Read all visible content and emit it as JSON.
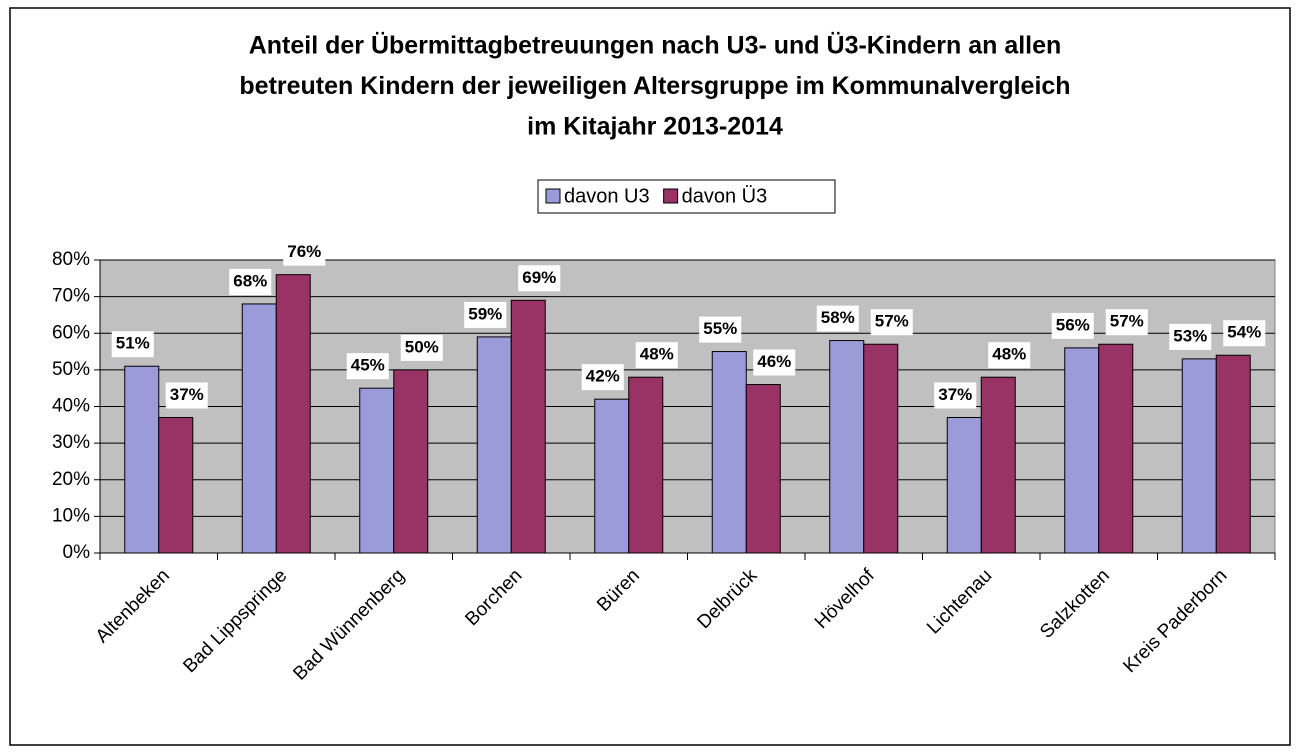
{
  "chart_data": {
    "type": "bar",
    "title": [
      "Anteil der Übermittagbetreuungen nach U3- und Ü3-Kindern an allen",
      "betreuten Kindern der jeweiligen Altersgruppe im Kommunalvergleich",
      "im Kitajahr 2013-2014"
    ],
    "categories": [
      "Altenbeken",
      "Bad Lippspringe",
      "Bad Wünnenberg",
      "Borchen",
      "Büren",
      "Delbrück",
      "Hövelhof",
      "Lichtenau",
      "Salzkotten",
      "Kreis Paderborn"
    ],
    "series": [
      {
        "name": "davon U3",
        "color": "#9c9bda",
        "values": [
          51,
          68,
          45,
          59,
          42,
          55,
          58,
          37,
          56,
          53
        ],
        "value_labels": [
          "51%",
          "68%",
          "45%",
          "59%",
          "42%",
          "55%",
          "58%",
          "37%",
          "56%",
          "53%"
        ]
      },
      {
        "name": "davon Ü3",
        "color": "#993366",
        "values": [
          37,
          76,
          50,
          69,
          48,
          46,
          57,
          48,
          57,
          54
        ],
        "value_labels": [
          "37%",
          "76%",
          "50%",
          "69%",
          "48%",
          "46%",
          "57%",
          "48%",
          "57%",
          "54%"
        ]
      }
    ],
    "ylim": [
      0,
      80
    ],
    "yticks": [
      {
        "value": 0,
        "label": "0%"
      },
      {
        "value": 10,
        "label": "10%"
      },
      {
        "value": 20,
        "label": "20%"
      },
      {
        "value": 30,
        "label": "30%"
      },
      {
        "value": 40,
        "label": "40%"
      },
      {
        "value": 50,
        "label": "50%"
      },
      {
        "value": 60,
        "label": "60%"
      },
      {
        "value": 70,
        "label": "70%"
      },
      {
        "value": 80,
        "label": "80%"
      }
    ],
    "grid": true,
    "legend": "top"
  }
}
